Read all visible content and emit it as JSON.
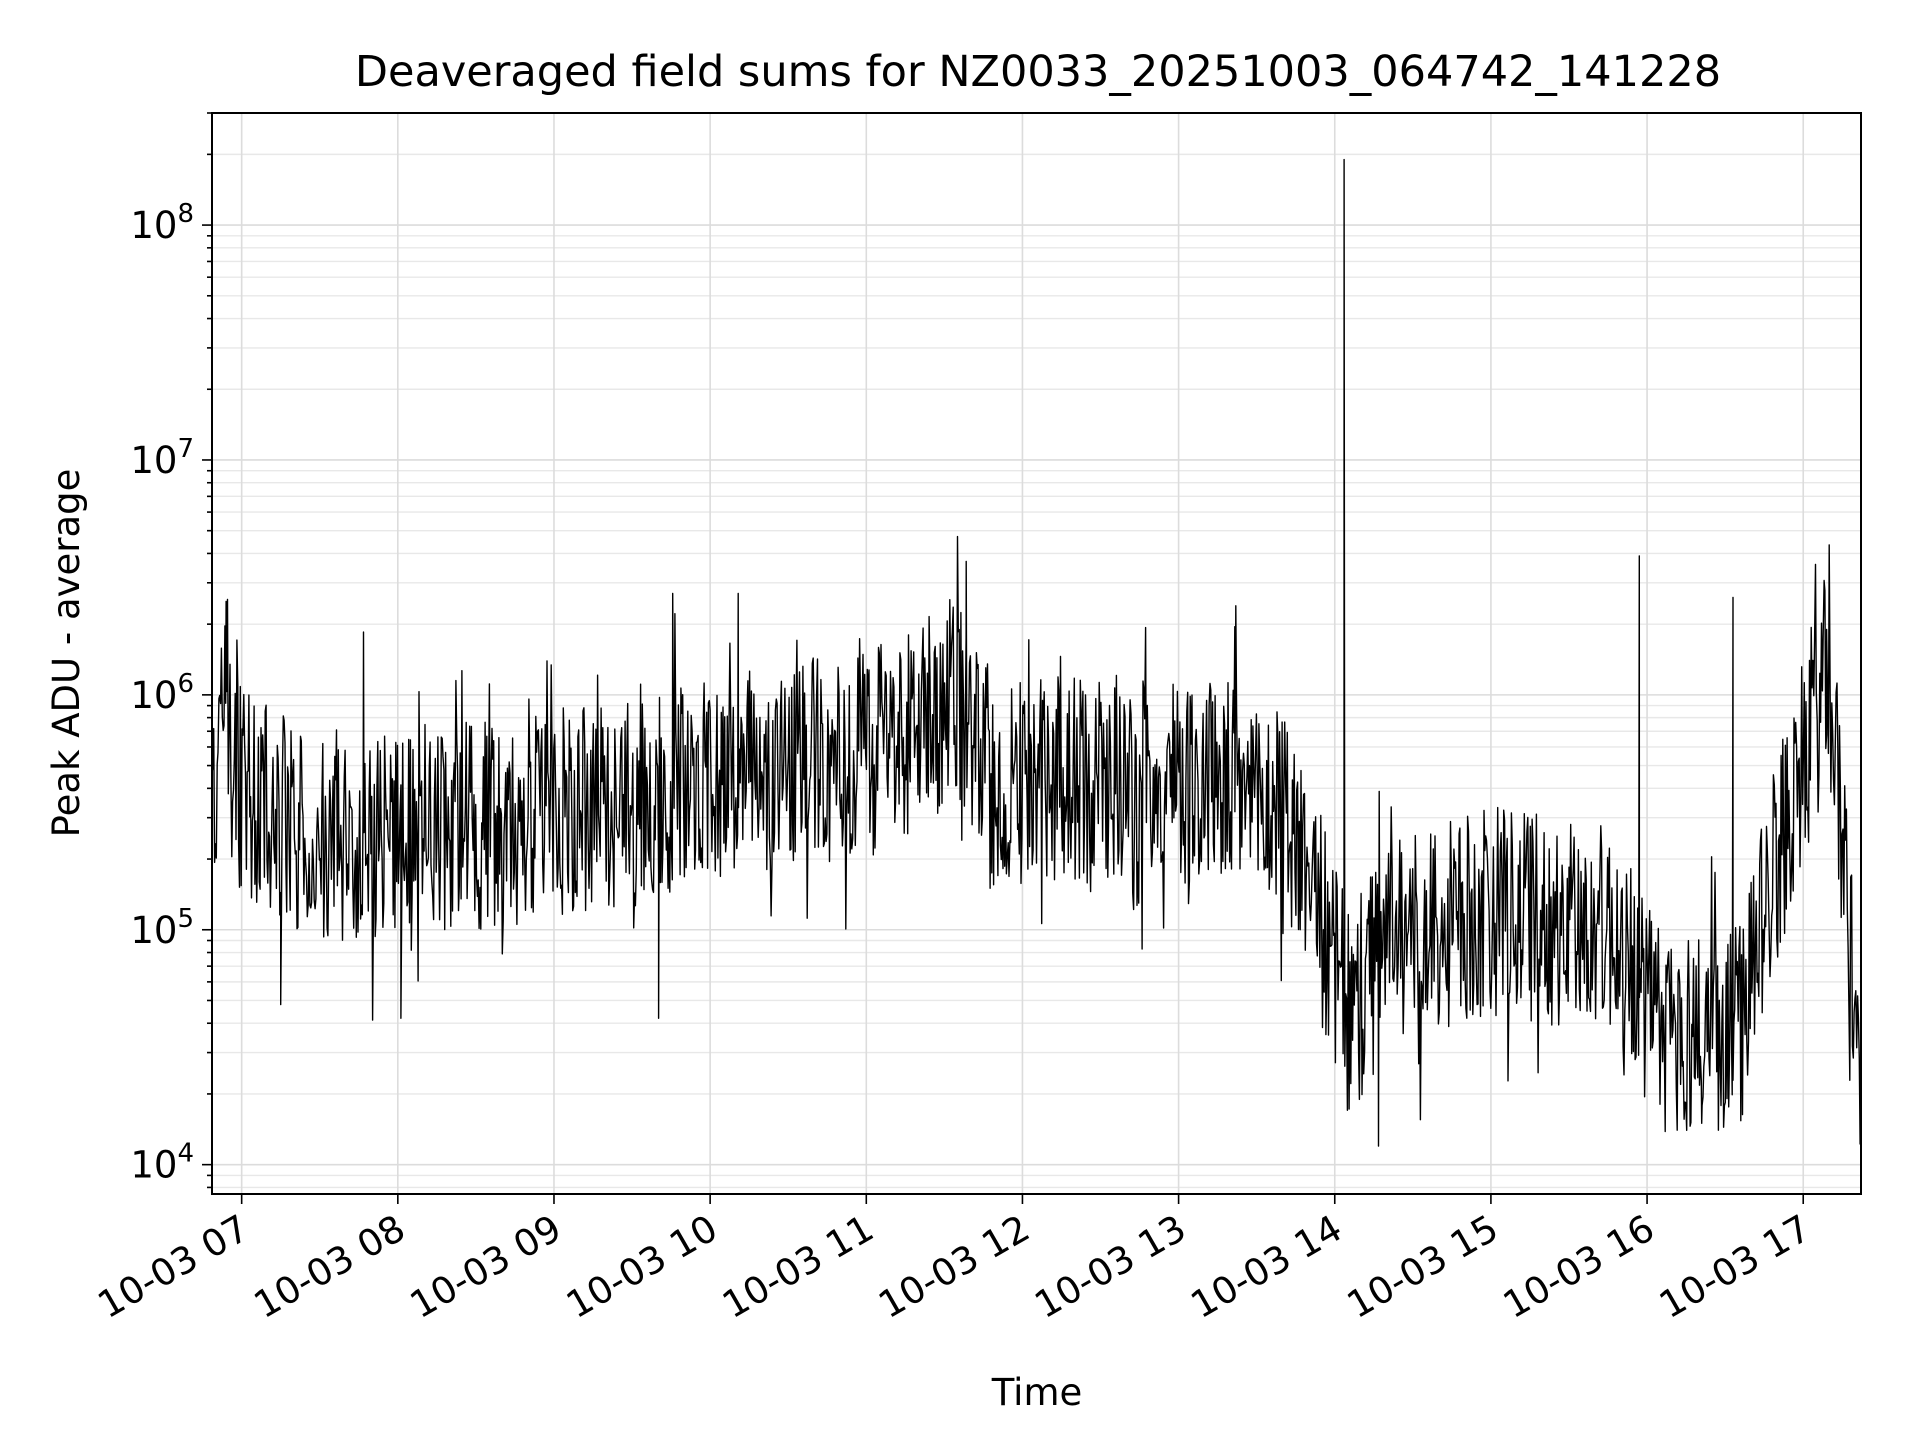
{
  "chart_data": {
    "type": "line",
    "title": "Deaveraged field sums for NZ0033_20251003_064742_141228",
    "xlabel": "Time",
    "ylabel": "Peak ADU - average",
    "yscale": "log",
    "ylim": [
      7500,
      300000000
    ],
    "y_ticks": [
      {
        "value": 10000,
        "base": "10",
        "exp": "4"
      },
      {
        "value": 100000,
        "base": "10",
        "exp": "5"
      },
      {
        "value": 1000000,
        "base": "10",
        "exp": "6"
      },
      {
        "value": 10000000,
        "base": "10",
        "exp": "7"
      },
      {
        "value": 100000000,
        "base": "10",
        "exp": "8"
      }
    ],
    "xlim_hours": [
      6.81,
      17.37
    ],
    "x_ticks": [
      {
        "hour": 7,
        "label": "10-03 07"
      },
      {
        "hour": 8,
        "label": "10-03 08"
      },
      {
        "hour": 9,
        "label": "10-03 09"
      },
      {
        "hour": 10,
        "label": "10-03 10"
      },
      {
        "hour": 11,
        "label": "10-03 11"
      },
      {
        "hour": 12,
        "label": "10-03 12"
      },
      {
        "hour": 13,
        "label": "10-03 13"
      },
      {
        "hour": 14,
        "label": "10-03 14"
      },
      {
        "hour": 15,
        "label": "10-03 15"
      },
      {
        "hour": 16,
        "label": "10-03 16"
      },
      {
        "hour": 17,
        "label": "10-03 17"
      }
    ],
    "line_color": "#000000",
    "grid": true,
    "series_envelope": {
      "name": "deaveraged field sum",
      "sample_interval_hours": 0.0055,
      "baseline": [
        {
          "hour": 6.81,
          "value": 300000
        },
        {
          "hour": 6.9,
          "value": 1500000
        },
        {
          "hour": 6.95,
          "value": 400000
        },
        {
          "hour": 7.5,
          "value": 250000
        },
        {
          "hour": 8.5,
          "value": 280000
        },
        {
          "hour": 9.5,
          "value": 350000
        },
        {
          "hour": 10.5,
          "value": 500000
        },
        {
          "hour": 11.2,
          "value": 600000
        },
        {
          "hour": 11.6,
          "value": 1000000
        },
        {
          "hour": 11.8,
          "value": 400000
        },
        {
          "hour": 12.5,
          "value": 450000
        },
        {
          "hour": 13.3,
          "value": 420000
        },
        {
          "hour": 13.7,
          "value": 300000
        },
        {
          "hour": 13.9,
          "value": 120000
        },
        {
          "hour": 14.1,
          "value": 40000
        },
        {
          "hour": 14.3,
          "value": 80000
        },
        {
          "hour": 15.0,
          "value": 120000
        },
        {
          "hour": 15.8,
          "value": 100000
        },
        {
          "hour": 16.1,
          "value": 35000
        },
        {
          "hour": 16.6,
          "value": 40000
        },
        {
          "hour": 16.9,
          "value": 300000
        },
        {
          "hour": 17.15,
          "value": 1200000
        },
        {
          "hour": 17.3,
          "value": 100000
        },
        {
          "hour": 17.37,
          "value": 20000
        }
      ],
      "spikes": [
        {
          "hour": 6.9,
          "value": 2500000
        },
        {
          "hour": 7.78,
          "value": 1850000
        },
        {
          "hour": 9.76,
          "value": 2700000
        },
        {
          "hour": 10.18,
          "value": 2700000
        },
        {
          "hour": 11.64,
          "value": 3700000
        },
        {
          "hour": 13.36,
          "value": 1950000
        },
        {
          "hour": 14.06,
          "value": 190000000
        },
        {
          "hour": 15.95,
          "value": 3900000
        },
        {
          "hour": 16.55,
          "value": 2600000
        },
        {
          "hour": 17.15,
          "value": 1900000
        }
      ],
      "dips": [
        {
          "hour": 7.25,
          "value": 48000
        },
        {
          "hour": 8.02,
          "value": 42000
        },
        {
          "hour": 9.67,
          "value": 42000
        },
        {
          "hour": 14.28,
          "value": 12000
        },
        {
          "hour": 16.35,
          "value": 15000
        },
        {
          "hour": 17.37,
          "value": 16000
        }
      ]
    }
  }
}
